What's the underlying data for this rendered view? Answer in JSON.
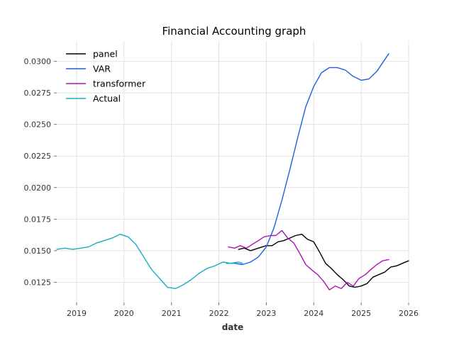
{
  "chart_data": {
    "type": "line",
    "title": "Financial Accounting graph",
    "xlabel": "date",
    "ylabel": "",
    "x_range": [
      "2018-08-01",
      "2026-01-01"
    ],
    "ylim": [
      0.0109,
      0.0316
    ],
    "x_ticks": [
      "2019",
      "2020",
      "2021",
      "2022",
      "2023",
      "2024",
      "2025",
      "2026"
    ],
    "y_ticks": [
      "0.0125",
      "0.0150",
      "0.0175",
      "0.0200",
      "0.0225",
      "0.0250",
      "0.0275",
      "0.0300"
    ],
    "grid": true,
    "legend_position": "top-left",
    "series": [
      {
        "name": "panel",
        "color": "#000000",
        "points": [
          [
            "2022-06-01",
            0.0151
          ],
          [
            "2022-07-15",
            0.0152
          ],
          [
            "2022-09-01",
            0.015
          ],
          [
            "2022-11-01",
            0.0152
          ],
          [
            "2023-01-01",
            0.0154
          ],
          [
            "2023-02-15",
            0.0154
          ],
          [
            "2023-04-01",
            0.0157
          ],
          [
            "2023-05-15",
            0.0158
          ],
          [
            "2023-07-01",
            0.016
          ],
          [
            "2023-08-15",
            0.0162
          ],
          [
            "2023-10-01",
            0.0163
          ],
          [
            "2023-11-15",
            0.0159
          ],
          [
            "2024-01-01",
            0.0157
          ],
          [
            "2024-02-15",
            0.0149
          ],
          [
            "2024-04-01",
            0.014
          ],
          [
            "2024-05-15",
            0.0136
          ],
          [
            "2024-07-01",
            0.0131
          ],
          [
            "2024-08-15",
            0.0127
          ],
          [
            "2024-10-01",
            0.0122
          ],
          [
            "2024-11-15",
            0.0121
          ],
          [
            "2025-01-01",
            0.0122
          ],
          [
            "2025-02-15",
            0.0124
          ],
          [
            "2025-04-01",
            0.0129
          ],
          [
            "2025-05-15",
            0.0131
          ],
          [
            "2025-07-01",
            0.0133
          ],
          [
            "2025-08-15",
            0.0137
          ],
          [
            "2025-10-01",
            0.0138
          ],
          [
            "2025-11-15",
            0.014
          ],
          [
            "2026-01-01",
            0.0142
          ]
        ]
      },
      {
        "name": "VAR",
        "color": "#1f5fde",
        "points": [
          [
            "2022-03-01",
            0.014
          ],
          [
            "2022-05-01",
            0.014
          ],
          [
            "2022-07-01",
            0.0139
          ],
          [
            "2022-09-01",
            0.0141
          ],
          [
            "2022-11-01",
            0.0145
          ],
          [
            "2023-01-01",
            0.0153
          ],
          [
            "2023-03-01",
            0.0168
          ],
          [
            "2023-05-01",
            0.019
          ],
          [
            "2023-07-01",
            0.0214
          ],
          [
            "2023-09-01",
            0.024
          ],
          [
            "2023-11-01",
            0.0264
          ],
          [
            "2024-01-01",
            0.028
          ],
          [
            "2024-03-01",
            0.0291
          ],
          [
            "2024-05-01",
            0.0295
          ],
          [
            "2024-07-01",
            0.0295
          ],
          [
            "2024-09-01",
            0.0293
          ],
          [
            "2024-11-01",
            0.0288
          ],
          [
            "2025-01-01",
            0.0285
          ],
          [
            "2025-03-01",
            0.0286
          ],
          [
            "2025-05-01",
            0.0292
          ],
          [
            "2025-08-01",
            0.0306
          ]
        ]
      },
      {
        "name": "transformer",
        "color": "#b012b8",
        "points": [
          [
            "2022-03-15",
            0.0153
          ],
          [
            "2022-05-01",
            0.0152
          ],
          [
            "2022-06-15",
            0.0154
          ],
          [
            "2022-08-01",
            0.0152
          ],
          [
            "2022-09-15",
            0.0155
          ],
          [
            "2022-11-01",
            0.0158
          ],
          [
            "2022-12-15",
            0.0161
          ],
          [
            "2023-02-01",
            0.0162
          ],
          [
            "2023-03-15",
            0.0162
          ],
          [
            "2023-05-01",
            0.0166
          ],
          [
            "2023-06-15",
            0.016
          ],
          [
            "2023-08-01",
            0.0156
          ],
          [
            "2023-09-15",
            0.0148
          ],
          [
            "2023-11-01",
            0.0139
          ],
          [
            "2023-12-15",
            0.0135
          ],
          [
            "2024-02-01",
            0.0131
          ],
          [
            "2024-03-15",
            0.0126
          ],
          [
            "2024-05-01",
            0.0119
          ],
          [
            "2024-06-15",
            0.0122
          ],
          [
            "2024-08-01",
            0.012
          ],
          [
            "2024-09-15",
            0.0125
          ],
          [
            "2024-11-01",
            0.0122
          ],
          [
            "2024-12-15",
            0.0128
          ],
          [
            "2025-02-01",
            0.0131
          ],
          [
            "2025-03-15",
            0.0135
          ],
          [
            "2025-05-01",
            0.0139
          ],
          [
            "2025-06-15",
            0.0142
          ],
          [
            "2025-08-01",
            0.0143
          ]
        ]
      },
      {
        "name": "Actual",
        "color": "#17aec2",
        "points": [
          [
            "2018-08-01",
            0.0151
          ],
          [
            "2018-10-01",
            0.0152
          ],
          [
            "2018-12-01",
            0.0151
          ],
          [
            "2019-02-01",
            0.0152
          ],
          [
            "2019-04-01",
            0.0153
          ],
          [
            "2019-06-01",
            0.0156
          ],
          [
            "2019-08-01",
            0.0158
          ],
          [
            "2019-10-01",
            0.016
          ],
          [
            "2019-12-01",
            0.0163
          ],
          [
            "2020-02-01",
            0.0161
          ],
          [
            "2020-04-01",
            0.0155
          ],
          [
            "2020-06-01",
            0.0145
          ],
          [
            "2020-08-01",
            0.0135
          ],
          [
            "2020-10-01",
            0.0128
          ],
          [
            "2020-12-01",
            0.0121
          ],
          [
            "2021-02-01",
            0.012
          ],
          [
            "2021-04-01",
            0.0123
          ],
          [
            "2021-06-01",
            0.0127
          ],
          [
            "2021-08-01",
            0.0132
          ],
          [
            "2021-10-01",
            0.0136
          ],
          [
            "2021-12-01",
            0.0138
          ],
          [
            "2022-02-01",
            0.0141
          ],
          [
            "2022-04-01",
            0.014
          ],
          [
            "2022-06-01",
            0.0141
          ],
          [
            "2022-07-01",
            0.014
          ]
        ]
      }
    ]
  }
}
